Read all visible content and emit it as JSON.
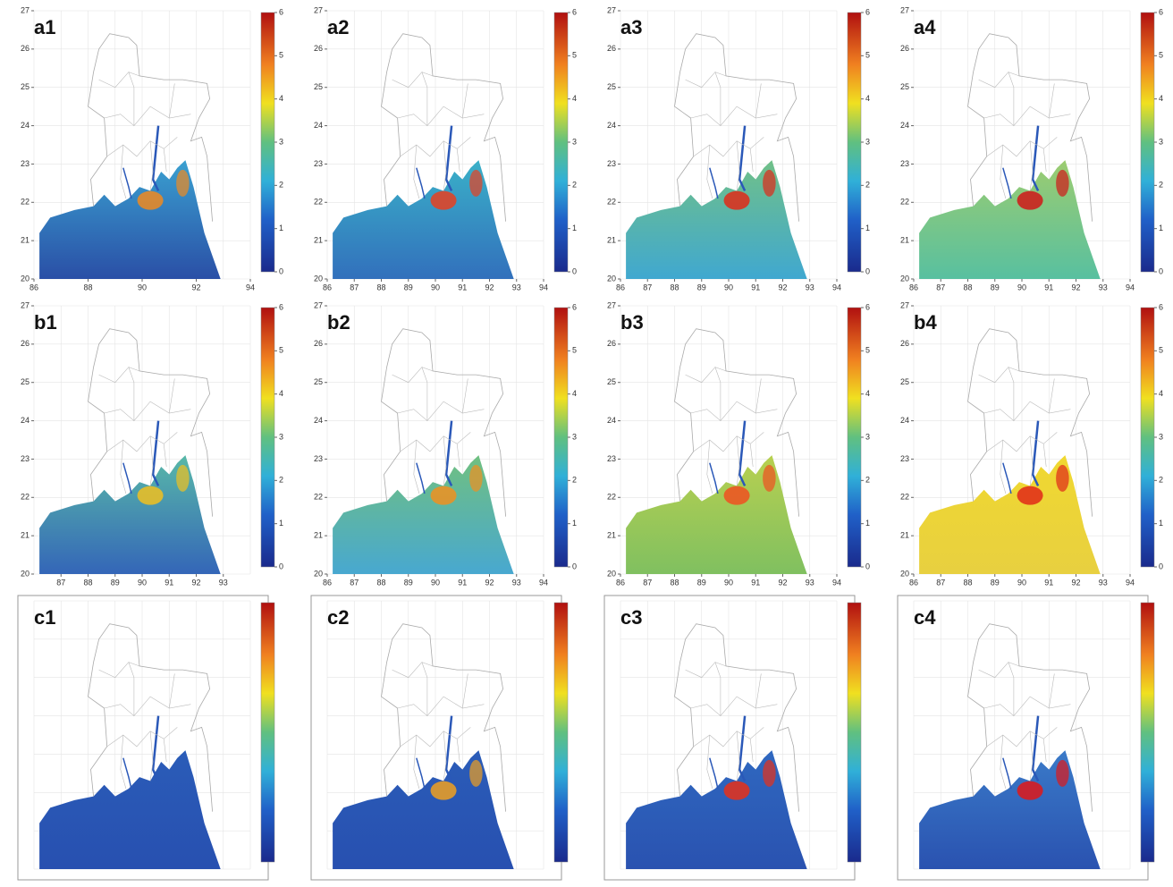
{
  "panels": [
    {
      "label": "a1",
      "xticks": [
        86,
        88,
        90,
        92,
        94
      ],
      "yticks": [
        20,
        21,
        22,
        23,
        24,
        25,
        26,
        27
      ],
      "colorbar_ticks": [
        0,
        1,
        2,
        3,
        4,
        5,
        6
      ]
    },
    {
      "label": "a2",
      "xticks": [
        86,
        87,
        88,
        89,
        90,
        91,
        92,
        93,
        94
      ],
      "yticks": [
        20,
        21,
        22,
        23,
        24,
        25,
        26,
        27
      ],
      "colorbar_ticks": [
        0,
        1,
        2,
        3,
        4,
        5,
        6
      ]
    },
    {
      "label": "a3",
      "xticks": [
        86,
        87,
        88,
        89,
        90,
        91,
        92,
        93,
        94
      ],
      "yticks": [
        20,
        21,
        22,
        23,
        24,
        25,
        26,
        27
      ],
      "colorbar_ticks": [
        0,
        1,
        2,
        3,
        4,
        5,
        6
      ]
    },
    {
      "label": "a4",
      "xticks": [
        86,
        87,
        88,
        89,
        90,
        91,
        92,
        93,
        94
      ],
      "yticks": [
        20,
        21,
        22,
        23,
        24,
        25,
        26,
        27
      ],
      "colorbar_ticks": [
        0,
        1,
        2,
        3,
        4,
        5,
        6
      ]
    },
    {
      "label": "b1",
      "xticks": [
        87,
        88,
        89,
        90,
        91,
        92,
        93
      ],
      "yticks": [
        20,
        21,
        22,
        23,
        24,
        25,
        26,
        27
      ],
      "colorbar_ticks": [
        0,
        1,
        2,
        3,
        4,
        5,
        6
      ]
    },
    {
      "label": "b2",
      "xticks": [
        86,
        87,
        88,
        89,
        90,
        91,
        92,
        93,
        94
      ],
      "yticks": [
        20,
        21,
        22,
        23,
        24,
        25,
        26,
        27
      ],
      "colorbar_ticks": [
        0,
        1,
        2,
        3,
        4,
        5,
        6
      ]
    },
    {
      "label": "b3",
      "xticks": [
        86,
        87,
        88,
        89,
        90,
        91,
        92,
        93,
        94
      ],
      "yticks": [
        20,
        21,
        22,
        23,
        24,
        25,
        26,
        27
      ],
      "colorbar_ticks": [
        0,
        1,
        2,
        3,
        4,
        5,
        6
      ]
    },
    {
      "label": "b4",
      "xticks": [
        86,
        87,
        88,
        89,
        90,
        91,
        92,
        93,
        94
      ],
      "yticks": [
        20,
        21,
        22,
        23,
        24,
        25,
        26,
        27
      ],
      "colorbar_ticks": [
        0,
        1,
        2,
        3,
        4,
        5,
        6
      ]
    },
    {
      "label": "c1"
    },
    {
      "label": "c2"
    },
    {
      "label": "c3"
    },
    {
      "label": "c4"
    }
  ]
}
